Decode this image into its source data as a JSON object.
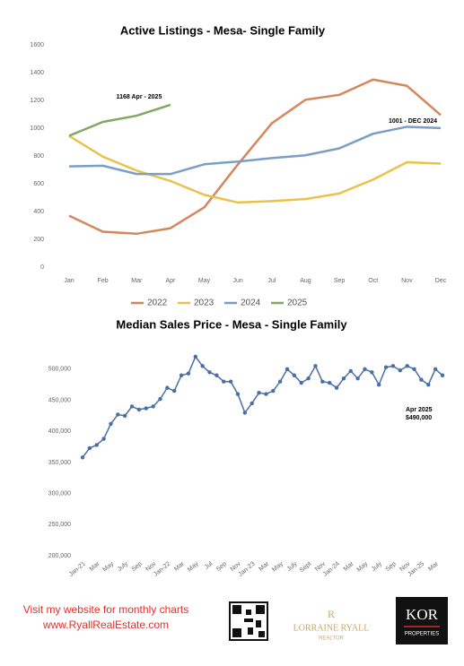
{
  "chart_data": [
    {
      "type": "line",
      "title": "Active Listings - Mesa-  Single Family",
      "categories": [
        "Jan",
        "Feb",
        "Mar",
        "Apr",
        "May",
        "Jun",
        "Jul",
        "Aug",
        "Sep",
        "Oct",
        "Nov",
        "Dec"
      ],
      "series": [
        {
          "name": "2022",
          "color": "#d4875a",
          "values": [
            370,
            255,
            240,
            280,
            430,
            740,
            1035,
            1205,
            1240,
            1350,
            1305,
            1095
          ]
        },
        {
          "name": "2023",
          "color": "#e8c24a",
          "values": [
            945,
            795,
            695,
            620,
            520,
            465,
            475,
            490,
            530,
            630,
            755,
            745
          ]
        },
        {
          "name": "2024",
          "color": "#7b9fc4",
          "values": [
            725,
            730,
            670,
            670,
            740,
            760,
            785,
            805,
            855,
            960,
            1010,
            1001
          ]
        },
        {
          "name": "2025",
          "color": "#7fa860",
          "values": [
            945,
            1045,
            1090,
            1168,
            null,
            null,
            null,
            null,
            null,
            null,
            null,
            null
          ]
        }
      ],
      "ylim": [
        0,
        1600
      ],
      "yticks": [
        0,
        200,
        400,
        600,
        800,
        1000,
        1200,
        1400,
        1600
      ],
      "grid": false,
      "legend": "bottom",
      "annotations": [
        "1168 Apr - 2025",
        "1001 - DEC 2024"
      ]
    },
    {
      "type": "line",
      "title": "Median Sales Price -  Mesa - Single Family",
      "categories": [
        "Jan-21",
        null,
        "Mar",
        null,
        "May",
        null,
        "July",
        null,
        "Sep",
        null,
        "Nov",
        null,
        "Jan-22",
        null,
        "Mar",
        null,
        "May",
        null,
        "Jul",
        null,
        "Sep",
        null,
        "Nov",
        null,
        "Jan-23",
        null,
        "Mar",
        null,
        "May",
        null,
        "July",
        null,
        "Sept",
        null,
        "Nov",
        null,
        "Jan-24",
        null,
        "Mar",
        null,
        "May",
        null,
        "July",
        null,
        "Sep",
        null,
        "Nov",
        null,
        "Jan-25",
        null,
        "Mar",
        null
      ],
      "color": "#4a6fa5",
      "values": [
        358000,
        373000,
        378000,
        388000,
        412000,
        427000,
        425000,
        440000,
        435000,
        437000,
        440000,
        452000,
        470000,
        465000,
        490000,
        493000,
        520000,
        505000,
        495000,
        490000,
        480000,
        480000,
        460000,
        430000,
        445000,
        462000,
        460000,
        465000,
        480000,
        500000,
        490000,
        478000,
        485000,
        505000,
        480000,
        478000,
        470000,
        485000,
        497000,
        485000,
        500000,
        495000,
        475000,
        503000,
        505000,
        498000,
        505000,
        500000,
        483000,
        475000,
        500000,
        490000
      ],
      "ylim": [
        200000,
        530000
      ],
      "yticks": [
        {
          "value": 200000,
          "label": "200,000"
        },
        {
          "value": 250000,
          "label": "250,000"
        },
        {
          "value": 300000,
          "label": "300,000"
        },
        {
          "value": 350000,
          "label": "350,000"
        },
        {
          "value": 400000,
          "label": "400,000"
        },
        {
          "value": 450000,
          "label": "450,000"
        },
        {
          "value": 500000,
          "label": "500,000"
        }
      ],
      "grid": false,
      "annotations": [
        "Apr 2025",
        "$490,000"
      ]
    }
  ],
  "footer": {
    "website_prompt": "Visit my website for monthly charts",
    "website": "www.RyallRealEstate.com",
    "agent_name": "LORRAINE RYALL",
    "agent_title": "REALTOR",
    "brokerage": "KOR",
    "brokerage_sub": "PROPERTIES"
  }
}
